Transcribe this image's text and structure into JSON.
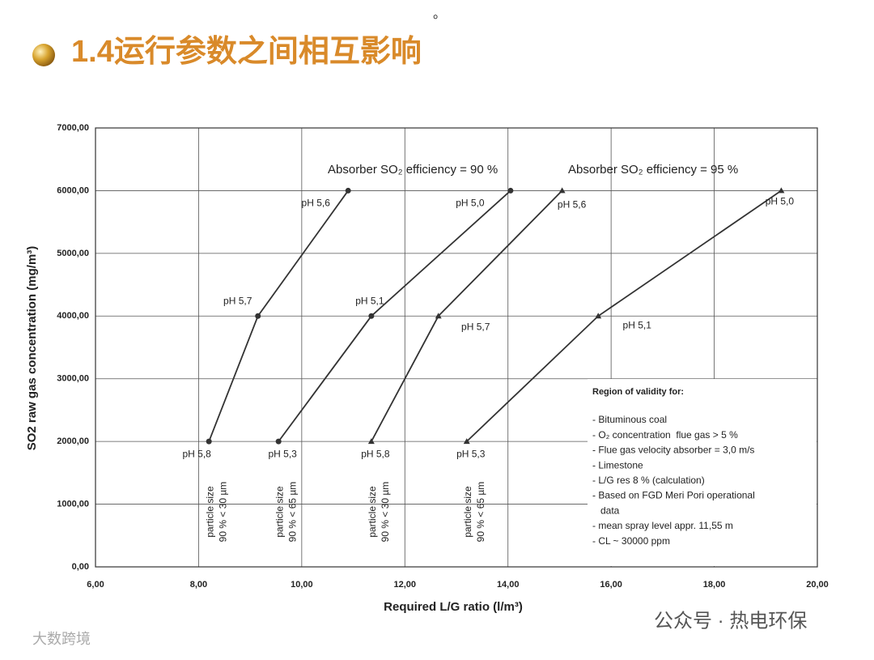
{
  "page": {
    "mark": "。",
    "title": "1.4运行参数之间相互影响"
  },
  "chart_data": {
    "type": "line-scatter",
    "x_label": "Required L/G ratio (l/m³)",
    "y_label": "SO2 raw gas concentration (mg/m³)",
    "xlim": [
      6,
      20
    ],
    "xticks": [
      {
        "value": 6,
        "label": "6,00"
      },
      {
        "value": 8,
        "label": "8,00"
      },
      {
        "value": 10,
        "label": "10,00"
      },
      {
        "value": 12,
        "label": "12,00"
      },
      {
        "value": 14,
        "label": "14,00"
      },
      {
        "value": 16,
        "label": "16,00"
      },
      {
        "value": 18,
        "label": "18,00"
      },
      {
        "value": 20,
        "label": "20,00"
      }
    ],
    "ylim": [
      0,
      7000
    ],
    "yticks": [
      {
        "value": 0,
        "label": "0,00"
      },
      {
        "value": 1000,
        "label": "1000,00"
      },
      {
        "value": 2000,
        "label": "2000,00"
      },
      {
        "value": 3000,
        "label": "3000,00"
      },
      {
        "value": 4000,
        "label": "4000,00"
      },
      {
        "value": 5000,
        "label": "5000,00"
      },
      {
        "value": 6000,
        "label": "6000,00"
      },
      {
        "value": 7000,
        "label": "7000,00"
      }
    ],
    "grid": true,
    "color": "#333333",
    "annotations": [
      "Absorber SO₂ efficiency = 90 %",
      "Absorber SO₂ efficiency = 95 %"
    ],
    "series": [
      {
        "marker": "circle",
        "note": [
          "particle size",
          "90 % < 30 µm"
        ],
        "x": [
          8.2,
          9.15,
          10.9
        ],
        "values": [
          2000,
          4000,
          6000
        ],
        "point_labels": [
          "pH 5,8",
          "pH 5,7",
          "pH 5,6"
        ]
      },
      {
        "marker": "circle",
        "note": [
          "particle size",
          "90 % < 65 µm"
        ],
        "x": [
          9.55,
          11.35,
          14.05
        ],
        "values": [
          2000,
          4000,
          6000
        ],
        "point_labels": [
          "pH 5,3",
          "pH 5,1",
          "pH 5,0"
        ]
      },
      {
        "marker": "triangle",
        "note": [
          "particle size",
          "90 % < 30 µm"
        ],
        "x": [
          11.35,
          12.65,
          15.05
        ],
        "values": [
          2000,
          4000,
          6000
        ],
        "point_labels": [
          "pH 5,8",
          "pH 5,7",
          "pH 5,6"
        ]
      },
      {
        "marker": "triangle",
        "note": [
          "particle size",
          "90 % < 65 µm"
        ],
        "x": [
          13.2,
          15.75,
          19.3
        ],
        "values": [
          2000,
          4000,
          6000
        ],
        "point_labels": [
          "pH 5,3",
          "pH 5,1",
          "pH 5,0"
        ]
      }
    ],
    "validity": {
      "title": "Region of validity for:",
      "items": [
        "- Bituminous coal",
        "- O₂ concentration  flue gas > 5 %",
        "- Flue gas velocity absorber = 3,0 m/s",
        "- Limestone",
        "- L/G res 8 % (calculation)",
        "- Based on FGD Meri Pori operational",
        "   data",
        "- mean spray level appr. 11,55 m",
        "- CL ~ 30000 ppm"
      ]
    }
  },
  "watermarks": [
    "公众号 · 热电环保",
    "大数跨境"
  ]
}
